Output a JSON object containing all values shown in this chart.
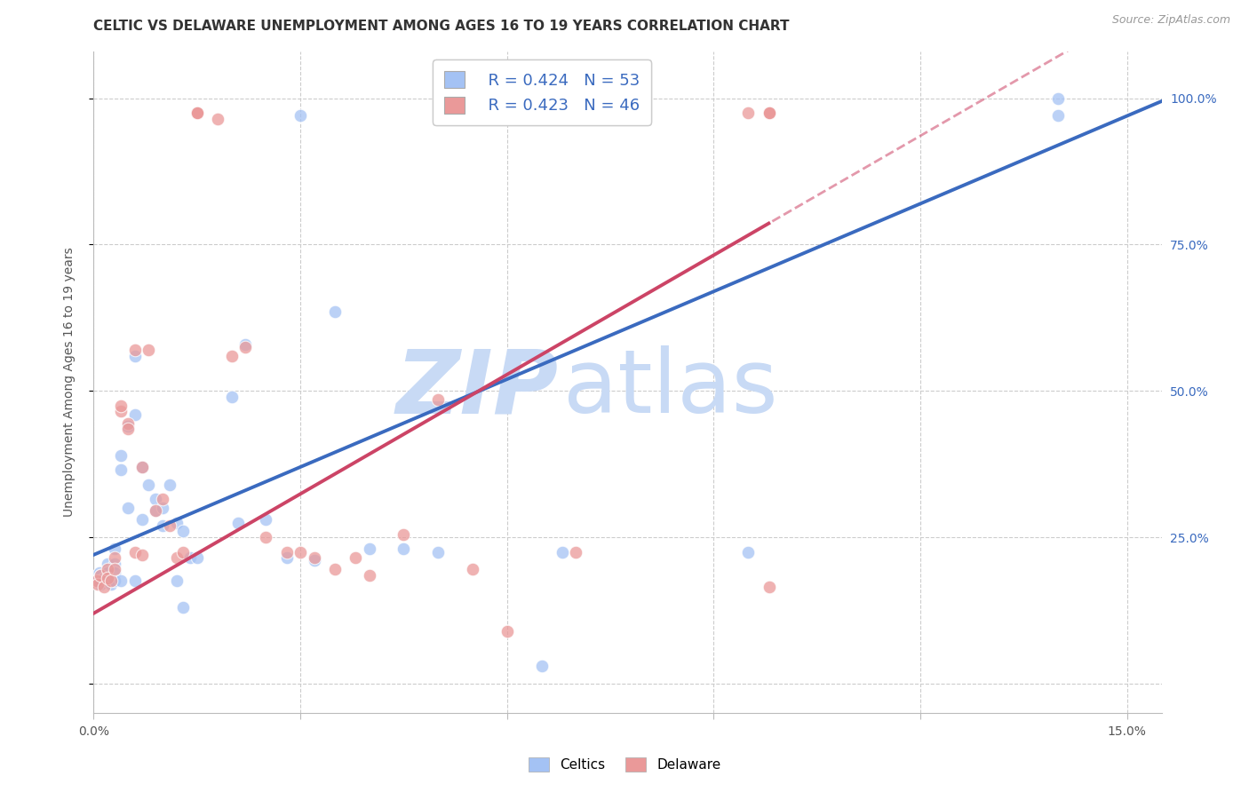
{
  "title": "CELTIC VS DELAWARE UNEMPLOYMENT AMONG AGES 16 TO 19 YEARS CORRELATION CHART",
  "source": "Source: ZipAtlas.com",
  "ylabel": "Unemployment Among Ages 16 to 19 years",
  "xlim": [
    0.0,
    0.155
  ],
  "ylim": [
    -0.05,
    1.08
  ],
  "x_ticks": [
    0.0,
    0.03,
    0.06,
    0.09,
    0.12,
    0.15
  ],
  "x_tick_labels": [
    "0.0%",
    "",
    "",
    "",
    "",
    "15.0%"
  ],
  "y_ticks": [
    0.0,
    0.25,
    0.5,
    0.75,
    1.0
  ],
  "y_right_labels": [
    "",
    "25.0%",
    "50.0%",
    "75.0%",
    "100.0%"
  ],
  "legend_R_celtics": "R = 0.424",
  "legend_N_celtics": "N = 53",
  "legend_R_delaware": "R = 0.423",
  "legend_N_delaware": "N = 46",
  "celtics_color": "#a4c2f4",
  "delaware_color": "#ea9999",
  "celtics_line_color": "#3a6abf",
  "delaware_line_color": "#cc4466",
  "watermark_zip_color": "#c8daf5",
  "watermark_atlas_color": "#c8daf5",
  "background_color": "#ffffff",
  "title_fontsize": 11,
  "celtics_line_intercept": 0.22,
  "celtics_line_slope": 5.0,
  "delaware_line_intercept": 0.12,
  "delaware_line_slope": 6.8,
  "celtics_x": [
    0.0004,
    0.0006,
    0.0008,
    0.001,
    0.001,
    0.001,
    0.0015,
    0.002,
    0.002,
    0.002,
    0.0025,
    0.003,
    0.003,
    0.003,
    0.003,
    0.004,
    0.004,
    0.004,
    0.005,
    0.005,
    0.006,
    0.006,
    0.006,
    0.007,
    0.007,
    0.008,
    0.009,
    0.009,
    0.01,
    0.01,
    0.011,
    0.012,
    0.012,
    0.013,
    0.013,
    0.014,
    0.015,
    0.02,
    0.021,
    0.022,
    0.025,
    0.028,
    0.03,
    0.032,
    0.035,
    0.04,
    0.045,
    0.05,
    0.065,
    0.068,
    0.095,
    0.14,
    0.14
  ],
  "celtics_y": [
    0.185,
    0.175,
    0.19,
    0.185,
    0.175,
    0.17,
    0.18,
    0.205,
    0.19,
    0.175,
    0.17,
    0.23,
    0.205,
    0.19,
    0.175,
    0.365,
    0.39,
    0.175,
    0.3,
    0.44,
    0.46,
    0.56,
    0.175,
    0.37,
    0.28,
    0.34,
    0.295,
    0.315,
    0.27,
    0.3,
    0.34,
    0.175,
    0.275,
    0.26,
    0.13,
    0.215,
    0.215,
    0.49,
    0.275,
    0.58,
    0.28,
    0.215,
    0.97,
    0.21,
    0.635,
    0.23,
    0.23,
    0.225,
    0.03,
    0.225,
    0.225,
    0.97,
    1.0
  ],
  "delaware_x": [
    0.0004,
    0.0006,
    0.001,
    0.0015,
    0.002,
    0.002,
    0.0025,
    0.003,
    0.003,
    0.004,
    0.004,
    0.005,
    0.005,
    0.006,
    0.006,
    0.007,
    0.007,
    0.008,
    0.009,
    0.01,
    0.011,
    0.012,
    0.013,
    0.015,
    0.015,
    0.015,
    0.018,
    0.02,
    0.022,
    0.025,
    0.028,
    0.03,
    0.032,
    0.035,
    0.038,
    0.04,
    0.045,
    0.05,
    0.055,
    0.06,
    0.07,
    0.095,
    0.098,
    0.098,
    0.098,
    0.098
  ],
  "delaware_y": [
    0.175,
    0.17,
    0.185,
    0.165,
    0.195,
    0.18,
    0.175,
    0.215,
    0.195,
    0.465,
    0.475,
    0.445,
    0.435,
    0.225,
    0.57,
    0.22,
    0.37,
    0.57,
    0.295,
    0.315,
    0.27,
    0.215,
    0.225,
    0.975,
    0.975,
    0.975,
    0.965,
    0.56,
    0.575,
    0.25,
    0.225,
    0.225,
    0.215,
    0.195,
    0.215,
    0.185,
    0.255,
    0.485,
    0.195,
    0.09,
    0.225,
    0.975,
    0.975,
    0.975,
    0.975,
    0.165
  ]
}
